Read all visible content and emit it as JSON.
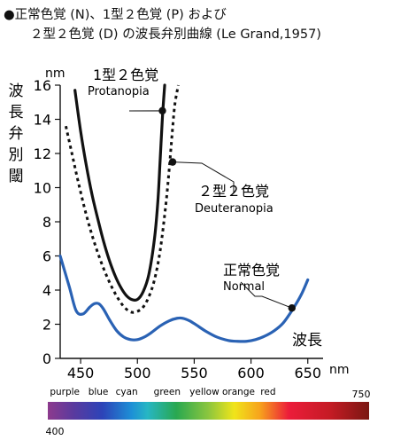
{
  "title_lines": [
    "●正常色覚 (N)、1型２色覚 (P) および",
    "２型２色覚 (D) の波長弁別曲線 (Le Grand,1957)"
  ],
  "chart_data": {
    "type": "line",
    "title": "正常色覚 (N)、1型２色覚 (P) および ２型２色覚 (D) の波長弁別曲線 (Le Grand,1957)",
    "xlabel": "波長",
    "x_unit": "nm",
    "ylabel": "波長弁別閾",
    "y_unit": "nm",
    "xlim": [
      432,
      658
    ],
    "ylim": [
      0,
      16
    ],
    "x_ticks": [
      450,
      500,
      550,
      600,
      650
    ],
    "y_ticks": [
      0,
      2,
      4,
      6,
      8,
      10,
      12,
      14,
      16
    ],
    "series": [
      {
        "name": "正常色覚",
        "name_en": "Normal",
        "style": "solid",
        "color": "#2a62b4",
        "x": [
          432,
          440,
          446,
          452,
          458,
          462,
          466,
          470,
          476,
          482,
          488,
          494,
          500,
          506,
          512,
          520,
          528,
          535,
          540,
          546,
          552,
          560,
          570,
          580,
          588,
          596,
          604,
          612,
          620,
          628,
          636,
          644,
          650
        ],
        "y": [
          6.0,
          4.2,
          2.8,
          2.6,
          3.0,
          3.2,
          3.2,
          2.9,
          2.2,
          1.6,
          1.25,
          1.1,
          1.1,
          1.25,
          1.5,
          1.9,
          2.2,
          2.35,
          2.35,
          2.2,
          1.95,
          1.6,
          1.25,
          1.05,
          1.0,
          1.0,
          1.1,
          1.3,
          1.6,
          2.05,
          2.8,
          3.7,
          4.6
        ]
      },
      {
        "name": "1型２色覚",
        "name_en": "Protanopia",
        "style": "solid",
        "color": "#111111",
        "x": [
          445,
          450,
          455,
          460,
          465,
          470,
          475,
          480,
          485,
          490,
          495,
          500,
          505,
          510,
          515,
          518,
          520,
          522,
          524
        ],
        "y": [
          15.7,
          13.3,
          11.3,
          9.6,
          8.2,
          6.9,
          5.8,
          4.9,
          4.2,
          3.7,
          3.45,
          3.45,
          3.9,
          4.9,
          7.0,
          9.2,
          11.6,
          14.1,
          16.0
        ]
      },
      {
        "name": "２型２色覚",
        "name_en": "Deuteranopia",
        "style": "dashed",
        "color": "#111111",
        "x": [
          437,
          442,
          448,
          455,
          462,
          470,
          478,
          485,
          490,
          495,
          500,
          505,
          510,
          515,
          520,
          525,
          528,
          531,
          533,
          536
        ],
        "y": [
          13.6,
          12.1,
          10.3,
          8.4,
          6.8,
          5.3,
          4.1,
          3.3,
          2.9,
          2.7,
          2.75,
          3.0,
          3.6,
          4.6,
          6.3,
          9.0,
          11.1,
          13.5,
          14.9,
          16.0
        ]
      }
    ],
    "annotations": [
      {
        "series": "1型２色覚",
        "label": "1型２色覚",
        "sublabel": "Protanopia",
        "point": [
          522,
          14.5
        ]
      },
      {
        "series": "２型２色覚",
        "label": "２型２色覚",
        "sublabel": "Deuteranopia",
        "point": [
          531,
          11.5
        ]
      },
      {
        "series": "正常色覚",
        "label": "正常色覚",
        "sublabel": "Normal",
        "point": [
          636,
          2.95
        ]
      }
    ],
    "spectrum_bar": {
      "range": [
        400,
        750
      ],
      "start_label": "400",
      "end_label": "750",
      "color_labels": [
        "purple",
        "blue",
        "cyan",
        "green",
        "yellow orange",
        "red"
      ],
      "color_label_nm": [
        405,
        455,
        486,
        530,
        590,
        640
      ]
    },
    "grid": false,
    "legend": "none"
  }
}
